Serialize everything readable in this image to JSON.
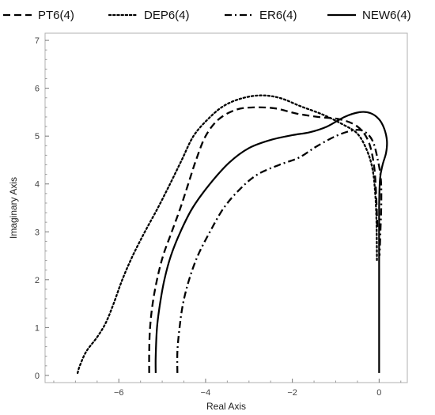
{
  "chart_data": {
    "type": "line",
    "title": "",
    "xlabel": "Real Axis",
    "ylabel": "Imaginary Axis",
    "xlim": [
      -7.7,
      0.65
    ],
    "ylim": [
      -0.15,
      7.15
    ],
    "x_ticks": [
      -6,
      -4,
      -2,
      0
    ],
    "x_tick_labels": [
      "−6",
      "−4",
      "−2",
      "0"
    ],
    "y_ticks": [
      0,
      1,
      2,
      3,
      4,
      5,
      6,
      7
    ],
    "y_tick_labels": [
      "0",
      "1",
      "2",
      "3",
      "4",
      "5",
      "6",
      "7"
    ],
    "legend_position": "top",
    "line_color": "#000000",
    "frame_color": "#b0b0b0",
    "series": [
      {
        "name": "PT6(4)",
        "style": "dashed",
        "points": [
          [
            -5.3,
            0.05
          ],
          [
            -5.3,
            0.5
          ],
          [
            -5.28,
            1.0
          ],
          [
            -5.22,
            1.5
          ],
          [
            -5.12,
            2.0
          ],
          [
            -4.98,
            2.5
          ],
          [
            -4.78,
            3.0
          ],
          [
            -4.58,
            3.5
          ],
          [
            -4.4,
            4.0
          ],
          [
            -4.22,
            4.5
          ],
          [
            -4.0,
            5.0
          ],
          [
            -3.7,
            5.35
          ],
          [
            -3.3,
            5.55
          ],
          [
            -2.9,
            5.6
          ],
          [
            -2.4,
            5.58
          ],
          [
            -1.9,
            5.47
          ],
          [
            -1.4,
            5.4
          ],
          [
            -0.9,
            5.35
          ],
          [
            -0.5,
            5.2
          ],
          [
            -0.25,
            4.9
          ],
          [
            -0.12,
            4.4
          ],
          [
            -0.07,
            3.8
          ],
          [
            -0.04,
            3.1
          ]
        ]
      },
      {
        "name": "DEP6(4)",
        "style": "dotted",
        "points": [
          [
            -6.95,
            0.05
          ],
          [
            -6.9,
            0.2
          ],
          [
            -6.75,
            0.5
          ],
          [
            -6.5,
            0.8
          ],
          [
            -6.3,
            1.1
          ],
          [
            -6.12,
            1.5
          ],
          [
            -5.92,
            2.0
          ],
          [
            -5.68,
            2.5
          ],
          [
            -5.4,
            3.0
          ],
          [
            -5.1,
            3.5
          ],
          [
            -4.82,
            4.0
          ],
          [
            -4.55,
            4.5
          ],
          [
            -4.28,
            5.0
          ],
          [
            -3.95,
            5.35
          ],
          [
            -3.6,
            5.62
          ],
          [
            -3.2,
            5.78
          ],
          [
            -2.75,
            5.85
          ],
          [
            -2.3,
            5.8
          ],
          [
            -1.8,
            5.62
          ],
          [
            -1.3,
            5.45
          ],
          [
            -0.85,
            5.25
          ],
          [
            -0.5,
            5.05
          ],
          [
            -0.28,
            4.7
          ],
          [
            -0.15,
            4.3
          ],
          [
            -0.09,
            3.8
          ],
          [
            -0.06,
            3.2
          ],
          [
            -0.05,
            2.4
          ]
        ]
      },
      {
        "name": "ER6(4)",
        "style": "dashdot",
        "points": [
          [
            -4.65,
            0.05
          ],
          [
            -4.65,
            0.5
          ],
          [
            -4.6,
            1.0
          ],
          [
            -4.52,
            1.5
          ],
          [
            -4.38,
            2.0
          ],
          [
            -4.18,
            2.5
          ],
          [
            -3.9,
            3.0
          ],
          [
            -3.58,
            3.5
          ],
          [
            -3.2,
            3.9
          ],
          [
            -2.8,
            4.2
          ],
          [
            -2.3,
            4.4
          ],
          [
            -1.85,
            4.55
          ],
          [
            -1.45,
            4.78
          ],
          [
            -1.0,
            5.0
          ],
          [
            -0.6,
            5.12
          ],
          [
            -0.35,
            5.1
          ],
          [
            -0.15,
            4.9
          ],
          [
            -0.03,
            4.5
          ],
          [
            0.04,
            4.1
          ],
          [
            0.05,
            3.6
          ],
          [
            0.03,
            3.0
          ],
          [
            0.01,
            2.5
          ]
        ]
      },
      {
        "name": "NEW6(4)",
        "style": "solid",
        "points": [
          [
            -5.15,
            0.05
          ],
          [
            -5.15,
            0.4
          ],
          [
            -5.12,
            1.0
          ],
          [
            -5.05,
            1.5
          ],
          [
            -4.95,
            2.0
          ],
          [
            -4.8,
            2.5
          ],
          [
            -4.58,
            3.0
          ],
          [
            -4.3,
            3.5
          ],
          [
            -3.9,
            4.0
          ],
          [
            -3.45,
            4.45
          ],
          [
            -3.0,
            4.75
          ],
          [
            -2.5,
            4.92
          ],
          [
            -2.0,
            5.02
          ],
          [
            -1.6,
            5.08
          ],
          [
            -1.2,
            5.2
          ],
          [
            -0.8,
            5.4
          ],
          [
            -0.45,
            5.5
          ],
          [
            -0.2,
            5.48
          ],
          [
            0.0,
            5.35
          ],
          [
            0.12,
            5.15
          ],
          [
            0.18,
            4.9
          ],
          [
            0.16,
            4.65
          ],
          [
            0.08,
            4.4
          ],
          [
            0.02,
            4.1
          ],
          [
            0.0,
            3.5
          ],
          [
            0.0,
            2.5
          ],
          [
            0.0,
            1.5
          ],
          [
            0.0,
            0.05
          ]
        ]
      }
    ]
  }
}
